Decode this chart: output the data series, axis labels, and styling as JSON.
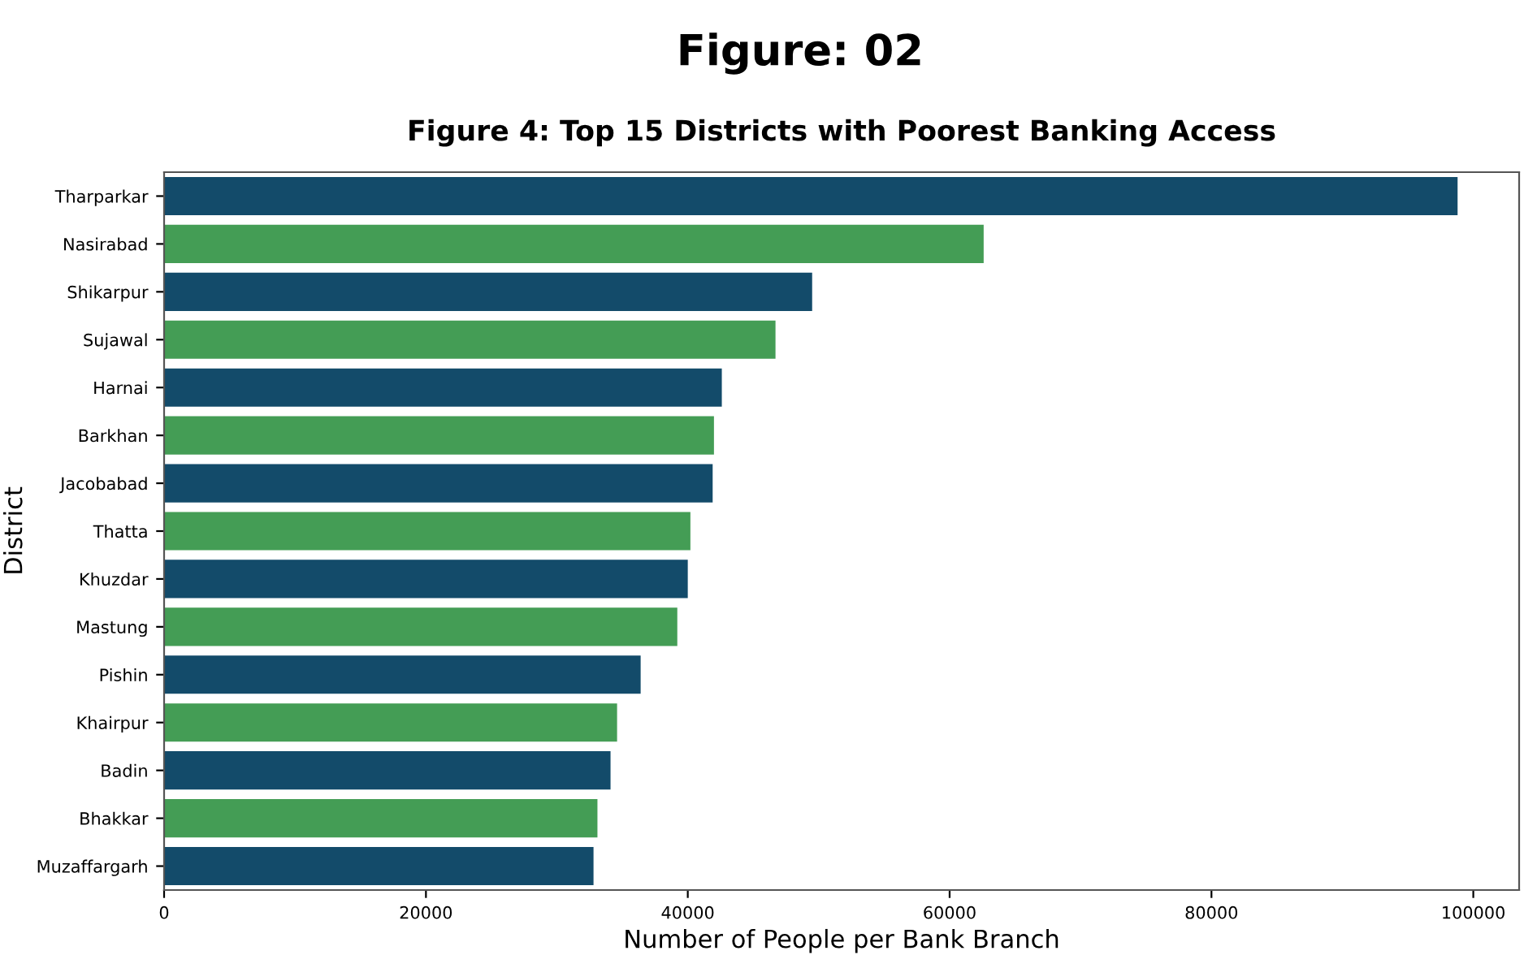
{
  "chart_data": {
    "type": "bar",
    "orientation": "horizontal",
    "title": "Figure: 02",
    "subtitle": "Figure 4: Top 15 Districts with Poorest Banking Access",
    "xlabel": "Number of People per Bank Branch",
    "ylabel": "District",
    "categories": [
      "Tharparkar",
      "Nasirabad",
      "Shikarpur",
      "Sujawal",
      "Harnai",
      "Barkhan",
      "Jacobabad",
      "Thatta",
      "Khuzdar",
      "Mastung",
      "Pishin",
      "Khairpur",
      "Badin",
      "Bhakkar",
      "Muzaffargarh"
    ],
    "values": [
      98800,
      62600,
      49500,
      46700,
      42600,
      42000,
      41900,
      40200,
      40000,
      39200,
      36400,
      34600,
      34100,
      33100,
      32800
    ],
    "colors": [
      "#134b6a",
      "#449d55",
      "#134b6a",
      "#449d55",
      "#134b6a",
      "#449d55",
      "#134b6a",
      "#449d55",
      "#134b6a",
      "#449d55",
      "#134b6a",
      "#449d55",
      "#134b6a",
      "#449d55",
      "#134b6a"
    ],
    "xlim": [
      0,
      103500
    ],
    "xticks": [
      0,
      20000,
      40000,
      60000,
      80000,
      100000
    ],
    "grid": false,
    "legend": false
  }
}
